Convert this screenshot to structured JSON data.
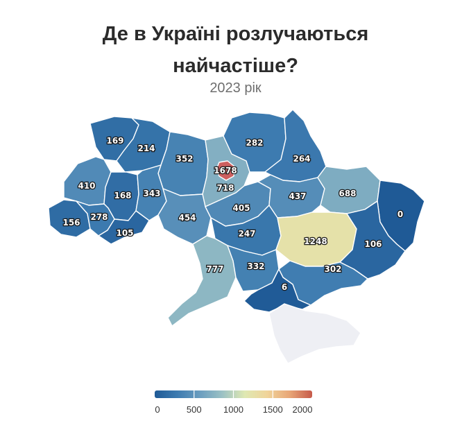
{
  "header": {
    "title_line1": "Де в Україні розлучаються",
    "title_line2": "найчастіше?",
    "subtitle": "2023 рік"
  },
  "colors": {
    "scale": [
      "#1f5a96",
      "#3d7bb0",
      "#6a9dbf",
      "#9bc1c4",
      "#dfe8b2",
      "#f0d49a",
      "#e8a677",
      "#c65a4a"
    ],
    "crimea": "#eeeff4",
    "kyiv_city": "#cd5f5f"
  },
  "chart_data": {
    "type": "choropleth",
    "scale_min": 0,
    "scale_max": 2000,
    "legend_ticks": [
      "0",
      "500",
      "1000",
      "1500",
      "2000"
    ],
    "regions": [
      {
        "id": "volyn",
        "value": 169
      },
      {
        "id": "rivne",
        "value": 214
      },
      {
        "id": "zhytomyr",
        "value": 352
      },
      {
        "id": "kyiv-oblast",
        "value": 718
      },
      {
        "id": "kyiv-city",
        "value": 1678
      },
      {
        "id": "chernihiv",
        "value": 282
      },
      {
        "id": "sumy",
        "value": 264
      },
      {
        "id": "lviv",
        "value": 410
      },
      {
        "id": "ternopil",
        "value": 168
      },
      {
        "id": "khmelnytskyi",
        "value": 343
      },
      {
        "id": "vinnytsia",
        "value": 454
      },
      {
        "id": "cherkasy",
        "value": 405
      },
      {
        "id": "poltava",
        "value": 437
      },
      {
        "id": "kharkiv",
        "value": 688
      },
      {
        "id": "luhansk",
        "value": 0
      },
      {
        "id": "zakarpattia",
        "value": 156
      },
      {
        "id": "ivano-frankivsk",
        "value": 278
      },
      {
        "id": "chernivtsi",
        "value": 105
      },
      {
        "id": "kirovohrad",
        "value": 247
      },
      {
        "id": "dnipropetrovsk",
        "value": 1248
      },
      {
        "id": "donetsk",
        "value": 106
      },
      {
        "id": "odesa",
        "value": 777
      },
      {
        "id": "mykolaiv",
        "value": 332
      },
      {
        "id": "zaporizhzhia",
        "value": 302
      },
      {
        "id": "kherson",
        "value": 6
      }
    ]
  }
}
